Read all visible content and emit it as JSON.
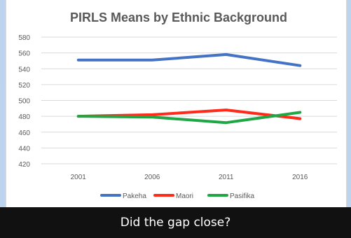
{
  "caption": "Did the gap close?",
  "chart_data": {
    "type": "line",
    "title": "PIRLS Means by Ethnic Background",
    "xlabel": "",
    "ylabel": "",
    "x": [
      "2001",
      "2006",
      "2011",
      "2016"
    ],
    "ylim": [
      420,
      580
    ],
    "yticks": [
      420,
      440,
      460,
      480,
      500,
      520,
      540,
      560,
      580
    ],
    "grid": true,
    "legend_position": "bottom",
    "series": [
      {
        "name": "Pakeha",
        "color": "#4472c4",
        "values": [
          551,
          551,
          558,
          544
        ]
      },
      {
        "name": "Maori",
        "color": "#ff2a1a",
        "values": [
          480,
          482,
          488,
          477
        ]
      },
      {
        "name": "Pasifika",
        "color": "#1fa745",
        "values": [
          480,
          479,
          472,
          485
        ]
      }
    ]
  }
}
